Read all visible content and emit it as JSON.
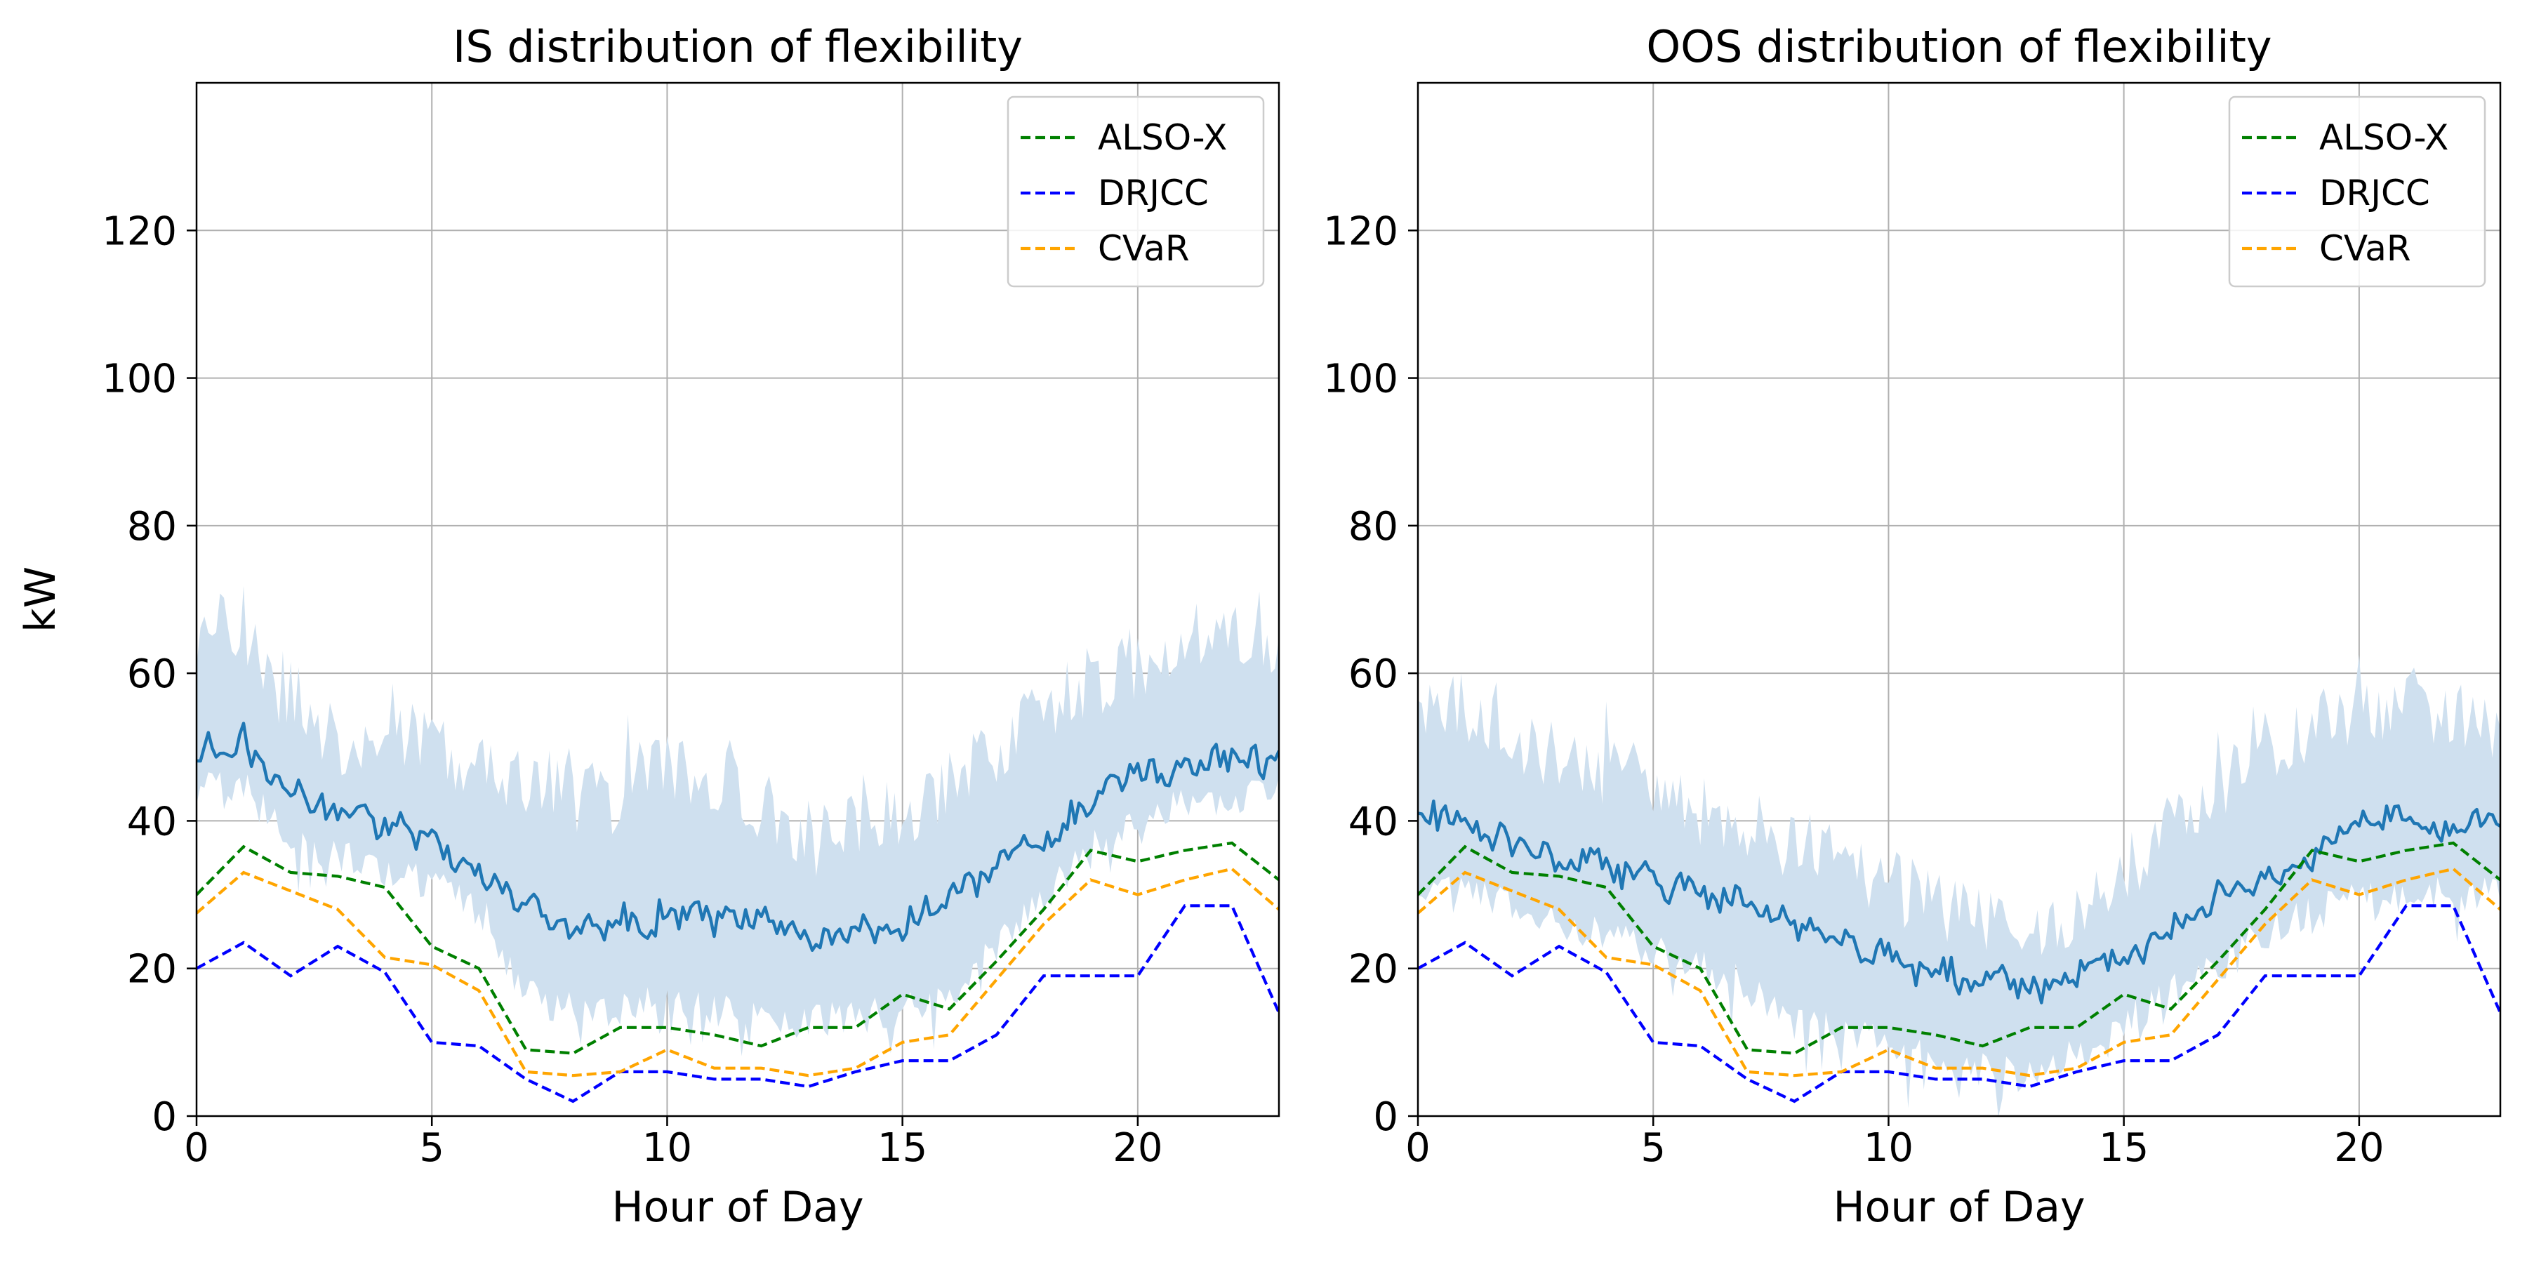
{
  "chart_data": [
    {
      "type": "line",
      "title": "IS distribution of flexibility",
      "xlabel": "Hour of Day",
      "ylabel": "kW",
      "xlim": [
        0,
        23
      ],
      "ylim": [
        0,
        140
      ],
      "xticks": [
        "0",
        "5",
        "10",
        "15",
        "20"
      ],
      "yticks": [
        "0",
        "20",
        "40",
        "60",
        "80",
        "100",
        "120"
      ],
      "grid": true,
      "legend_position": "top-right",
      "colors": {
        "mean_line": "#1f77b4",
        "band": "#cfe0ef",
        "ALSO-X": "#008000",
        "DRJCC": "#0000ff",
        "CVaR": "#ffa500"
      },
      "hourly_x": [
        0,
        1,
        2,
        3,
        4,
        5,
        6,
        7,
        8,
        9,
        10,
        11,
        12,
        13,
        14,
        15,
        16,
        17,
        18,
        19,
        20,
        21,
        22,
        23
      ],
      "series": [
        {
          "name": "ALSO-X",
          "style": "dashed",
          "values": [
            30,
            36.5,
            33,
            32.5,
            31,
            23,
            20,
            9,
            8.5,
            12,
            12,
            11,
            9.5,
            12,
            12,
            16.5,
            14.5,
            21,
            28,
            36,
            34.5,
            36,
            37,
            32
          ]
        },
        {
          "name": "DRJCC",
          "style": "dashed",
          "values": [
            20,
            23.5,
            19,
            23,
            19.5,
            10,
            9.5,
            5,
            2,
            6,
            6,
            5,
            5,
            4,
            6,
            7.5,
            7.5,
            11,
            19,
            19,
            19,
            28.5,
            28.5,
            14
          ]
        },
        {
          "name": "CVaR",
          "style": "dashed",
          "values": [
            27.5,
            33,
            30.5,
            28,
            21.5,
            20.5,
            17,
            6,
            5.5,
            6,
            9,
            6.5,
            6.5,
            5.5,
            6.5,
            10,
            11,
            18.5,
            26,
            32,
            30,
            32,
            33.5,
            28
          ]
        }
      ],
      "distribution": {
        "hours": [
          0,
          1,
          2,
          3,
          4,
          5,
          6,
          7,
          8,
          9,
          10,
          11,
          12,
          13,
          14,
          15,
          16,
          17,
          18,
          19,
          20,
          21,
          22,
          23
        ],
        "mean": [
          49,
          50,
          44,
          41,
          40,
          37,
          34,
          28,
          26,
          26,
          28,
          26,
          26,
          24,
          25,
          26,
          29,
          33,
          37,
          43,
          46,
          47,
          48,
          49
        ],
        "lower": [
          42,
          42,
          35,
          33,
          31,
          29,
          26,
          14,
          12,
          12,
          13,
          12,
          12,
          10,
          11,
          12,
          14,
          20,
          27,
          34,
          38,
          40,
          41,
          41
        ],
        "upper": [
          70,
          72,
          60,
          56,
          56,
          56,
          52,
          50,
          48,
          48,
          52,
          50,
          47,
          42,
          44,
          46,
          50,
          55,
          60,
          64,
          66,
          70,
          70,
          68
        ]
      }
    },
    {
      "type": "line",
      "title": "OOS distribution of flexibility",
      "xlabel": "Hour of Day",
      "ylabel": "",
      "xlim": [
        0,
        23
      ],
      "ylim": [
        0,
        140
      ],
      "xticks": [
        "0",
        "5",
        "10",
        "15",
        "20"
      ],
      "yticks": [
        "0",
        "20",
        "40",
        "60",
        "80",
        "100",
        "120"
      ],
      "grid": true,
      "legend_position": "top-right",
      "colors": {
        "mean_line": "#1f77b4",
        "band": "#cfe0ef",
        "ALSO-X": "#008000",
        "DRJCC": "#0000ff",
        "CVaR": "#ffa500"
      },
      "hourly_x": [
        0,
        1,
        2,
        3,
        4,
        5,
        6,
        7,
        8,
        9,
        10,
        11,
        12,
        13,
        14,
        15,
        16,
        17,
        18,
        19,
        20,
        21,
        22,
        23
      ],
      "series": [
        {
          "name": "ALSO-X",
          "style": "dashed",
          "values": [
            30,
            36.5,
            33,
            32.5,
            31,
            23,
            20,
            9,
            8.5,
            12,
            12,
            11,
            9.5,
            12,
            12,
            16.5,
            14.5,
            21,
            28,
            36,
            34.5,
            36,
            37,
            32
          ]
        },
        {
          "name": "DRJCC",
          "style": "dashed",
          "values": [
            20,
            23.5,
            19,
            23,
            19.5,
            10,
            9.5,
            5,
            2,
            6,
            6,
            5,
            5,
            4,
            6,
            7.5,
            7.5,
            11,
            19,
            19,
            19,
            28.5,
            28.5,
            14
          ]
        },
        {
          "name": "CVaR",
          "style": "dashed",
          "values": [
            27.5,
            33,
            30.5,
            28,
            21.5,
            20.5,
            17,
            6,
            5.5,
            6,
            9,
            6.5,
            6.5,
            5.5,
            6.5,
            10,
            11,
            18.5,
            26,
            32,
            30,
            32,
            33.5,
            28
          ]
        }
      ],
      "distribution": {
        "hours": [
          0,
          1,
          2,
          3,
          4,
          5,
          6,
          7,
          8,
          9,
          10,
          11,
          12,
          13,
          14,
          15,
          16,
          17,
          18,
          19,
          20,
          21,
          22,
          23
        ],
        "mean": [
          40,
          39,
          37,
          35,
          34,
          32,
          30,
          28,
          26,
          24,
          22,
          20,
          19,
          18,
          19,
          22,
          26,
          29,
          33,
          36,
          39,
          40,
          40,
          39
        ],
        "lower": [
          28,
          28,
          26,
          24,
          22,
          20,
          18,
          15,
          10,
          9,
          7,
          5,
          4,
          3,
          6,
          10,
          14,
          18,
          22,
          25,
          27,
          27,
          28,
          27
        ],
        "upper": [
          62,
          60,
          56,
          54,
          52,
          50,
          46,
          44,
          42,
          40,
          36,
          34,
          32,
          31,
          33,
          38,
          44,
          50,
          55,
          58,
          60,
          61,
          60,
          58
        ]
      }
    }
  ]
}
